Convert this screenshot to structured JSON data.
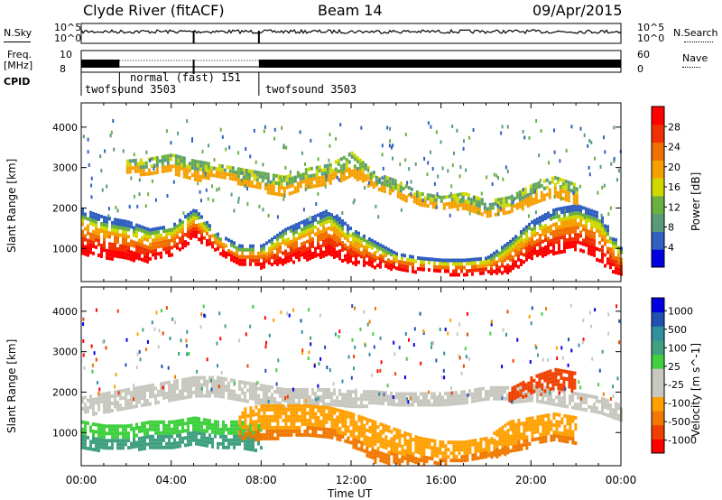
{
  "header": {
    "station": "Clyde River (fitACF)",
    "beam": "Beam 14",
    "date": "09/Apr/2015"
  },
  "noise_panel": {
    "left_label": "N.Sky",
    "right_label": "N.Search",
    "left_ticks": [
      "10^5",
      "10^0"
    ],
    "right_ticks": [
      "10^5",
      "10^0"
    ]
  },
  "freq_panel": {
    "left_label_line1": "Freq.",
    "left_label_line2": "[MHz]",
    "right_label": "Nave",
    "left_ticks": [
      "10",
      "8"
    ],
    "right_ticks": [
      "60",
      "0"
    ]
  },
  "cpid_panel": {
    "label": "CPID",
    "segments": [
      {
        "name": "twofsound 3503",
        "start_hour": 0.0
      },
      {
        "name": "normal (fast) 151",
        "start_hour": 1.7
      },
      {
        "name": "twofsound 3503",
        "start_hour": 7.9
      }
    ]
  },
  "colors": {
    "power": [
      "#0000e0",
      "#3060c0",
      "#5a9a78",
      "#6ab040",
      "#d0d800",
      "#f5a000",
      "#f07000",
      "#f03000",
      "#ff0000"
    ],
    "velocity": [
      "#ff0000",
      "#f04000",
      "#f07800",
      "#ffa000",
      "#c8c8c0",
      "#c8c8c0",
      "#40d040",
      "#40a080",
      "#3090a0",
      "#2050b0",
      "#0000e0"
    ]
  },
  "chart_data": [
    {
      "type": "heatmap",
      "name": "power",
      "ylabel": "Slant Range [km]",
      "xlim": [
        0,
        24
      ],
      "ylim": [
        180,
        4600
      ],
      "yticks": [
        1000,
        2000,
        3000,
        4000
      ],
      "colorbar": {
        "label": "Power [dB]",
        "range": [
          0,
          32
        ],
        "ticks": [
          "4",
          "8",
          "12",
          "16",
          "20",
          "24",
          "28"
        ]
      },
      "bands": [
        {
          "name": "main",
          "points": [
            [
              0,
              900,
              2000
            ],
            [
              1,
              800,
              1800
            ],
            [
              2,
              750,
              1700
            ],
            [
              3,
              700,
              1500
            ],
            [
              4,
              850,
              1600
            ],
            [
              5,
              1300,
              2000
            ],
            [
              6,
              950,
              1400
            ],
            [
              7,
              650,
              1100
            ],
            [
              8,
              550,
              1100
            ],
            [
              9,
              650,
              1500
            ],
            [
              10,
              750,
              1750
            ],
            [
              11,
              850,
              2000
            ],
            [
              12,
              650,
              1500
            ],
            [
              13,
              550,
              1200
            ],
            [
              14,
              500,
              900
            ],
            [
              15,
              450,
              800
            ],
            [
              16,
              400,
              750
            ],
            [
              17,
              380,
              750
            ],
            [
              18,
              380,
              800
            ],
            [
              19,
              450,
              1200
            ],
            [
              20,
              800,
              1700
            ],
            [
              21,
              900,
              2000
            ],
            [
              22,
              1000,
              2100
            ],
            [
              23,
              700,
              1900
            ],
            [
              24,
              300,
              1000
            ]
          ]
        },
        {
          "name": "upper",
          "points": [
            [
              2,
              2900,
              3200
            ],
            [
              3,
              2850,
              3250
            ],
            [
              4,
              2900,
              3350
            ],
            [
              5,
              2700,
              3200
            ],
            [
              6,
              2800,
              3100
            ],
            [
              9,
              2300,
              2800
            ],
            [
              10,
              2500,
              3000
            ],
            [
              11,
              2600,
              3100
            ],
            [
              12,
              2800,
              3400
            ],
            [
              13,
              2500,
              2900
            ],
            [
              14,
              2300,
              2700
            ],
            [
              15,
              2100,
              2400
            ],
            [
              16,
              2000,
              2300
            ],
            [
              17,
              2000,
              2400
            ],
            [
              18,
              1800,
              2200
            ],
            [
              19,
              1900,
              2300
            ],
            [
              20,
              2100,
              2600
            ],
            [
              21,
              2300,
              2800
            ],
            [
              22,
              2100,
              2600
            ]
          ]
        }
      ]
    },
    {
      "type": "heatmap",
      "name": "velocity",
      "xlabel": "Time UT",
      "ylabel": "Slant Range [km]",
      "xlim": [
        0,
        24
      ],
      "ylim": [
        180,
        4600
      ],
      "xticks": [
        "00:00",
        "04:00",
        "08:00",
        "12:00",
        "16:00",
        "20:00",
        "00:00"
      ],
      "yticks": [
        1000,
        2000,
        3000,
        4000
      ],
      "colorbar": {
        "label": "Velocity [m s^-1]",
        "ticks": [
          "1000",
          "500",
          "100",
          "25",
          "-25",
          "-100",
          "-500",
          "-1000"
        ]
      },
      "bands": [
        {
          "name": "green-low",
          "points": [
            [
              0,
              600,
              1300
            ],
            [
              1,
              600,
              1200
            ],
            [
              2,
              600,
              1200
            ],
            [
              3,
              650,
              1300
            ],
            [
              4,
              650,
              1300
            ],
            [
              5,
              700,
              1400
            ],
            [
              6,
              650,
              1300
            ],
            [
              7,
              600,
              1300
            ],
            [
              8,
              600,
              1200
            ]
          ]
        },
        {
          "name": "gray",
          "points": [
            [
              0,
              1500,
              1900
            ],
            [
              1,
              1500,
              2000
            ],
            [
              2,
              1600,
              2100
            ],
            [
              3,
              1700,
              2200
            ],
            [
              4,
              1800,
              2300
            ],
            [
              5,
              1900,
              2400
            ],
            [
              6,
              1900,
              2400
            ],
            [
              7,
              1800,
              2300
            ],
            [
              8,
              1700,
              2200
            ],
            [
              9,
              1650,
              2100
            ],
            [
              10,
              1700,
              2100
            ],
            [
              11,
              1700,
              2100
            ],
            [
              12,
              1650,
              2050
            ],
            [
              13,
              1700,
              2050
            ],
            [
              14,
              1700,
              2000
            ],
            [
              15,
              1700,
              2000
            ],
            [
              16,
              1700,
              2000
            ],
            [
              17,
              1750,
              2050
            ],
            [
              18,
              1800,
              2150
            ],
            [
              19,
              1800,
              2150
            ],
            [
              20,
              1800,
              2200
            ],
            [
              21,
              1700,
              2100
            ],
            [
              22,
              1600,
              2000
            ],
            [
              23,
              1500,
              1900
            ],
            [
              24,
              1300,
              1700
            ]
          ]
        },
        {
          "name": "orange",
          "points": [
            [
              7,
              900,
              1600
            ],
            [
              8,
              850,
              1700
            ],
            [
              9,
              900,
              1700
            ],
            [
              10,
              950,
              1700
            ],
            [
              11,
              900,
              1650
            ],
            [
              12,
              700,
              1500
            ],
            [
              13,
              300,
              1300
            ],
            [
              14,
              250,
              1100
            ],
            [
              15,
              250,
              900
            ],
            [
              16,
              250,
              800
            ],
            [
              17,
              300,
              800
            ],
            [
              18,
              400,
              900
            ],
            [
              19,
              500,
              1300
            ],
            [
              20,
              700,
              1400
            ],
            [
              21,
              800,
              1500
            ],
            [
              22,
              700,
              1400
            ]
          ]
        },
        {
          "name": "red-high",
          "points": [
            [
              19,
              1800,
              2100
            ],
            [
              20,
              2000,
              2400
            ],
            [
              21,
              2100,
              2600
            ],
            [
              22,
              2000,
              2500
            ]
          ]
        }
      ]
    }
  ]
}
